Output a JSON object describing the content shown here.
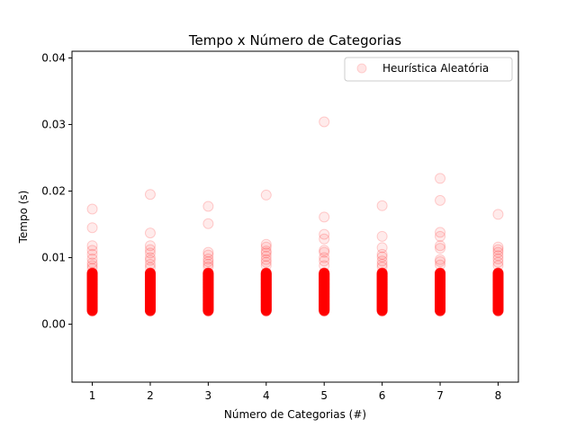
{
  "chart_data": {
    "type": "scatter",
    "title": "Tempo x Número de Categorias",
    "xlabel": "Número de Categorias (#)",
    "ylabel": "Tempo (s)",
    "xlim": [
      0.65,
      8.35
    ],
    "ylim": [
      -0.0087,
      0.041
    ],
    "xticks": [
      "1",
      "2",
      "3",
      "4",
      "5",
      "6",
      "7",
      "8"
    ],
    "yticks": [
      "0.00",
      "0.01",
      "0.02",
      "0.03",
      "0.04"
    ],
    "grid": false,
    "legend": {
      "position": "top-right",
      "entries": [
        "Heurística Aleatória"
      ]
    },
    "series": [
      {
        "name": "Heurística Aleatória",
        "color": "#ff0000",
        "alpha": 0.08,
        "marker": "circle",
        "dense_range": [
          0.002,
          0.0077
        ],
        "points": [
          [
            1,
            0.0173
          ],
          [
            1,
            0.0145
          ],
          [
            1,
            0.0118
          ],
          [
            1,
            0.0111
          ],
          [
            1,
            0.0105
          ],
          [
            1,
            0.0098
          ],
          [
            1,
            0.0092
          ],
          [
            1,
            0.0088
          ],
          [
            1,
            0.0084
          ],
          [
            2,
            0.0195
          ],
          [
            2,
            0.0137
          ],
          [
            2,
            0.0118
          ],
          [
            2,
            0.0112
          ],
          [
            2,
            0.0107
          ],
          [
            2,
            0.01
          ],
          [
            2,
            0.0096
          ],
          [
            2,
            0.009
          ],
          [
            2,
            0.0085
          ],
          [
            3,
            0.0177
          ],
          [
            3,
            0.0151
          ],
          [
            3,
            0.0108
          ],
          [
            3,
            0.0104
          ],
          [
            3,
            0.0098
          ],
          [
            3,
            0.0094
          ],
          [
            3,
            0.009
          ],
          [
            3,
            0.0086
          ],
          [
            4,
            0.0194
          ],
          [
            4,
            0.012
          ],
          [
            4,
            0.0116
          ],
          [
            4,
            0.011
          ],
          [
            4,
            0.0107
          ],
          [
            4,
            0.0102
          ],
          [
            4,
            0.0097
          ],
          [
            4,
            0.0093
          ],
          [
            4,
            0.0088
          ],
          [
            5,
            0.0304
          ],
          [
            5,
            0.0161
          ],
          [
            5,
            0.0135
          ],
          [
            5,
            0.0128
          ],
          [
            5,
            0.0111
          ],
          [
            5,
            0.0108
          ],
          [
            5,
            0.01
          ],
          [
            5,
            0.0095
          ],
          [
            5,
            0.0088
          ],
          [
            6,
            0.0178
          ],
          [
            6,
            0.0132
          ],
          [
            6,
            0.0115
          ],
          [
            6,
            0.0105
          ],
          [
            6,
            0.0101
          ],
          [
            6,
            0.0095
          ],
          [
            6,
            0.009
          ],
          [
            6,
            0.0086
          ],
          [
            7,
            0.0219
          ],
          [
            7,
            0.0186
          ],
          [
            7,
            0.0138
          ],
          [
            7,
            0.0132
          ],
          [
            7,
            0.0118
          ],
          [
            7,
            0.0114
          ],
          [
            7,
            0.0097
          ],
          [
            7,
            0.0094
          ],
          [
            7,
            0.0089
          ],
          [
            8,
            0.0165
          ],
          [
            8,
            0.0116
          ],
          [
            8,
            0.0112
          ],
          [
            8,
            0.0108
          ],
          [
            8,
            0.0103
          ],
          [
            8,
            0.0098
          ],
          [
            8,
            0.0093
          ],
          [
            8,
            0.0088
          ]
        ]
      }
    ]
  }
}
